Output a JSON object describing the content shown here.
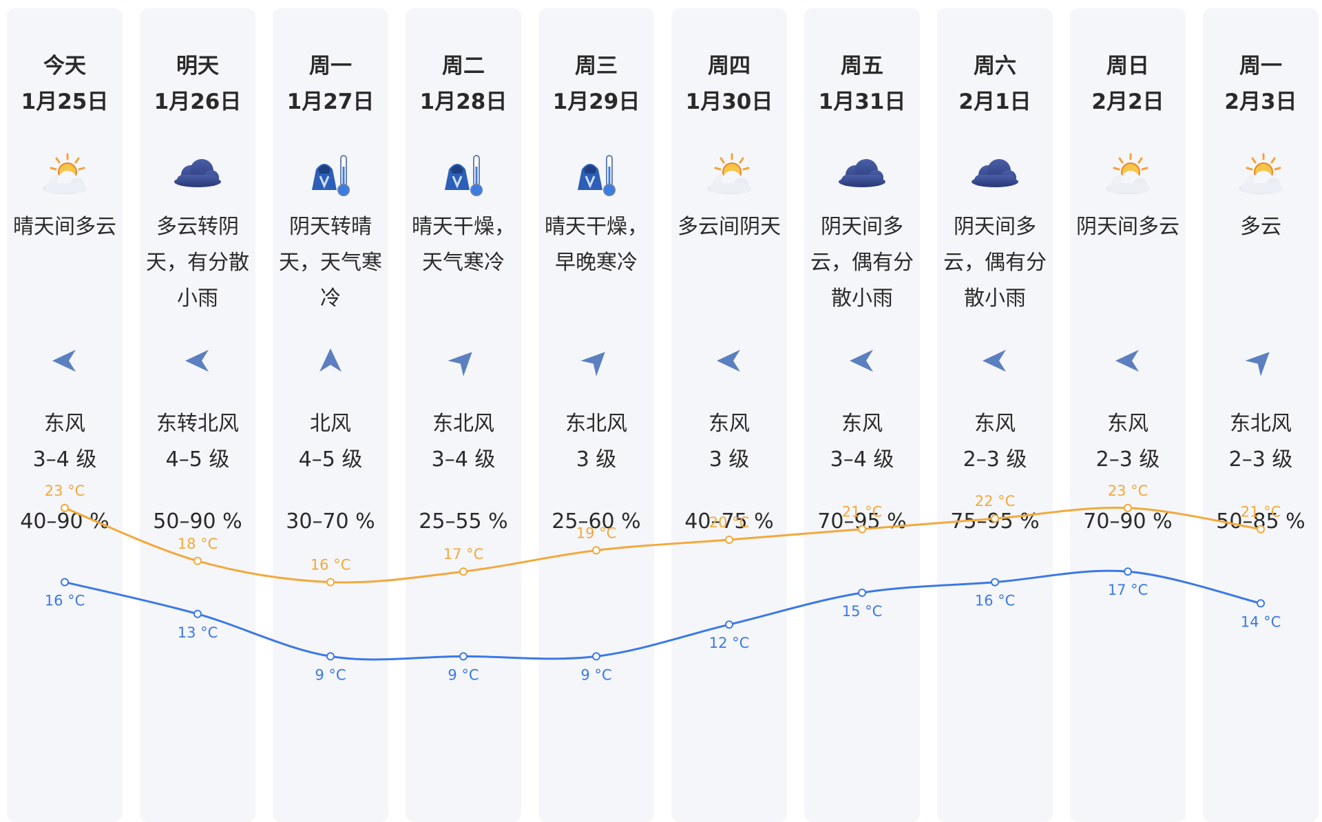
{
  "colors": {
    "high": "#f3a83b",
    "low": "#3a78e8",
    "column_bg": "#f5f6f9",
    "wind_arrow": "#5b7fbf"
  },
  "days": [
    {
      "dow": "今天",
      "date": "1月25日",
      "icon": "sun-behind-cloud-icon",
      "condition": "晴天间多云",
      "wind_dir": "东风",
      "wind_level": "3–4 级",
      "humidity": "40–90 %",
      "arrow": "east-wind-arrow-icon"
    },
    {
      "dow": "明天",
      "date": "1月26日",
      "icon": "cloud-icon",
      "condition": "多云转阴天，有分散小雨",
      "wind_dir": "东转北风",
      "wind_level": "4–5 级",
      "humidity": "50–90 %",
      "arrow": "east-wind-arrow-icon"
    },
    {
      "dow": "周一",
      "date": "1月27日",
      "icon": "cold-coat-thermometer-icon",
      "condition": "阴天转晴天，天气寒冷",
      "wind_dir": "北风",
      "wind_level": "4–5 级",
      "humidity": "30–70 %",
      "arrow": "north-wind-arrow-icon"
    },
    {
      "dow": "周二",
      "date": "1月28日",
      "icon": "cold-coat-thermometer-icon",
      "condition": "晴天干燥，天气寒冷",
      "wind_dir": "东北风",
      "wind_level": "3–4 级",
      "humidity": "25–55 %",
      "arrow": "northeast-wind-arrow-icon"
    },
    {
      "dow": "周三",
      "date": "1月29日",
      "icon": "cold-coat-thermometer-icon",
      "condition": "晴天干燥，早晚寒冷",
      "wind_dir": "东北风",
      "wind_level": "3 级",
      "humidity": "25–60 %",
      "arrow": "northeast-wind-arrow-icon"
    },
    {
      "dow": "周四",
      "date": "1月30日",
      "icon": "sun-behind-cloud-icon",
      "condition": "多云间阴天",
      "wind_dir": "东风",
      "wind_level": "3 级",
      "humidity": "40–75 %",
      "arrow": "east-wind-arrow-icon"
    },
    {
      "dow": "周五",
      "date": "1月31日",
      "icon": "cloud-icon",
      "condition": "阴天间多云，偶有分散小雨",
      "wind_dir": "东风",
      "wind_level": "3–4 级",
      "humidity": "70–95 %",
      "arrow": "east-wind-arrow-icon"
    },
    {
      "dow": "周六",
      "date": "2月1日",
      "icon": "cloud-icon",
      "condition": "阴天间多云，偶有分散小雨",
      "wind_dir": "东风",
      "wind_level": "2–3 级",
      "humidity": "75–95 %",
      "arrow": "east-wind-arrow-icon"
    },
    {
      "dow": "周日",
      "date": "2月2日",
      "icon": "sun-behind-cloud-icon",
      "condition": "阴天间多云",
      "wind_dir": "东风",
      "wind_level": "2–3 级",
      "humidity": "70–90 %",
      "arrow": "east-wind-arrow-icon"
    },
    {
      "dow": "周一",
      "date": "2月3日",
      "icon": "sun-behind-cloud-icon",
      "condition": "多云",
      "wind_dir": "东北风",
      "wind_level": "2–3 级",
      "humidity": "50–85 %",
      "arrow": "northeast-wind-arrow-icon"
    }
  ],
  "temperatures": {
    "high": [
      23,
      18,
      16,
      17,
      19,
      20,
      21,
      22,
      23,
      21
    ],
    "low": [
      16,
      13,
      9,
      9,
      9,
      12,
      15,
      16,
      17,
      14
    ],
    "unit": "°C"
  }
}
